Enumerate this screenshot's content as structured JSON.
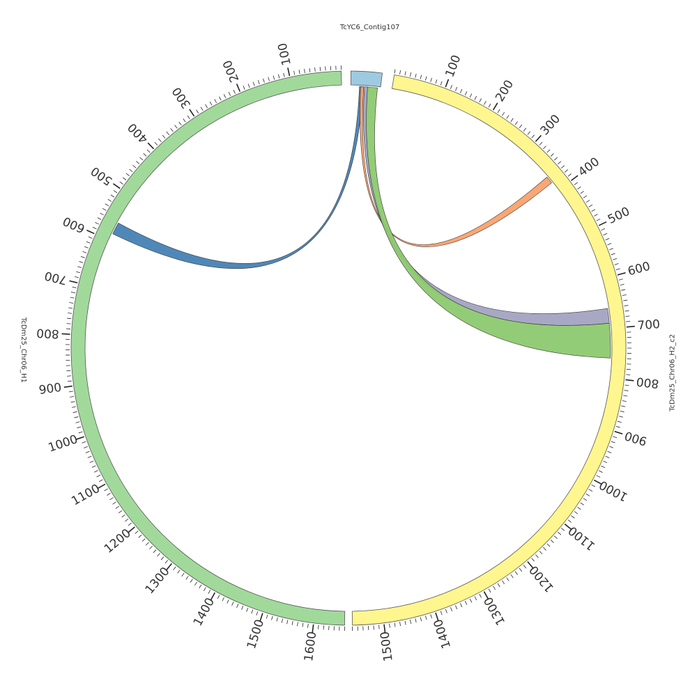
{
  "segments": [
    {
      "id": "contig107",
      "label": "TcYC6_Contig107",
      "color": "#9ecae1",
      "length": 120,
      "orientation": "cw",
      "show_ticks": false
    },
    {
      "id": "h2",
      "label": "TcDm25_Chr06_H2_c2",
      "color": "#fff68f",
      "length": 1560,
      "orientation": "cw",
      "show_ticks": true
    },
    {
      "id": "h1",
      "label": "TcDm25_Chr06_H1",
      "color": "#a1d99b",
      "length": 1660,
      "orientation": "ccw",
      "show_ticks": true
    }
  ],
  "links": [
    {
      "source": "contig107",
      "source_range": [
        35,
        50
      ],
      "target": "h1",
      "target_range": [
        560,
        585
      ],
      "color": "#4682b4"
    },
    {
      "source": "contig107",
      "source_range": [
        40,
        52
      ],
      "target": "h2",
      "target_range": [
        365,
        380
      ],
      "color": "#fca16e"
    },
    {
      "source": "contig107",
      "source_range": [
        55,
        70
      ],
      "target": "h2",
      "target_range": [
        660,
        690
      ],
      "color": "#a3a3c2"
    },
    {
      "source": "contig107",
      "source_range": [
        68,
        108
      ],
      "target": "h2",
      "target_range": [
        690,
        760
      ],
      "color": "#8dc96f"
    }
  ],
  "tick_labels": [
    "100",
    "200",
    "300",
    "400",
    "500",
    "600",
    "700",
    "800",
    "900",
    "1000",
    "1100",
    "1200",
    "1300",
    "1400",
    "1500",
    "1600"
  ]
}
